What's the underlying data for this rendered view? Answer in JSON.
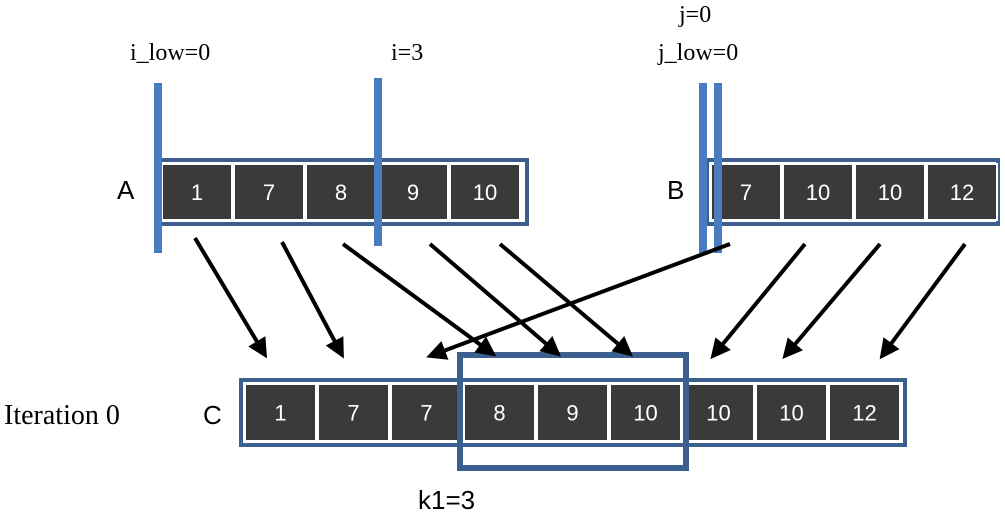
{
  "array_a": {
    "label": "A",
    "values": [
      "1",
      "7",
      "8",
      "9",
      "10"
    ]
  },
  "array_b": {
    "label": "B",
    "values": [
      "7",
      "10",
      "10",
      "12"
    ]
  },
  "array_c": {
    "label": "C",
    "values": [
      "1",
      "7",
      "7",
      "8",
      "9",
      "10",
      "10",
      "10",
      "12"
    ]
  },
  "pointers": {
    "i_low": "i_low=0",
    "i": "i=3",
    "j": "j=0",
    "j_low": "j_low=0"
  },
  "iteration_label": "Iteration 0",
  "k_label": "k1=3",
  "colors": {
    "cell_fill": "#3a3a3a",
    "frame": "#3b5f8f",
    "marker": "#4a7cc0",
    "text_on_cell": "#ffffff"
  }
}
